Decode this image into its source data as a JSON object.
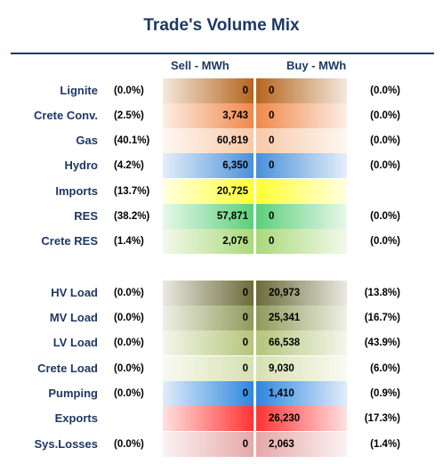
{
  "title": "Trade's Volume Mix",
  "headers": {
    "sell": "Sell - MWh",
    "buy": "Buy - MWh"
  },
  "rows": [
    {
      "label": "Lignite",
      "sell_pct": "(0.0%)",
      "sell": "0",
      "buy": "0",
      "buy_pct": "(0.0%)",
      "sell_color": "#b5651d",
      "buy_color": "#b5651d"
    },
    {
      "label": "Crete Conv.",
      "sell_pct": "(2.5%)",
      "sell": "3,743",
      "buy": "0",
      "buy_pct": "(0.0%)",
      "sell_color": "#f0884a",
      "buy_color": "#f0884a"
    },
    {
      "label": "Gas",
      "sell_pct": "(40.1%)",
      "sell": "60,819",
      "buy": "0",
      "buy_pct": "(0.0%)",
      "sell_color": "#f8c9a8",
      "buy_color": "#f8c9a8"
    },
    {
      "label": "Hydro",
      "sell_pct": "(4.2%)",
      "sell": "6,350",
      "buy": "0",
      "buy_pct": "(0.0%)",
      "sell_color": "#4a90d9",
      "buy_color": "#4a90d9"
    },
    {
      "label": "Imports",
      "sell_pct": "(13.7%)",
      "sell": "20,725",
      "buy": "",
      "buy_pct": "",
      "sell_color": "#ffff33",
      "buy_color": "#ffff33"
    },
    {
      "label": "RES",
      "sell_pct": "(38.2%)",
      "sell": "57,871",
      "buy": "0",
      "buy_pct": "(0.0%)",
      "sell_color": "#5ccf7a",
      "buy_color": "#5ccf7a"
    },
    {
      "label": "Crete RES",
      "sell_pct": "(1.4%)",
      "sell": "2,076",
      "buy": "0",
      "buy_pct": "(0.0%)",
      "sell_color": "#a9d97a",
      "buy_color": "#a9d97a"
    },
    {
      "label": "HV Load",
      "sell_pct": "(0.0%)",
      "sell": "0",
      "buy": "20,973",
      "buy_pct": "(13.8%)",
      "sell_color": "#6b6b3a",
      "buy_color": "#6b6b3a"
    },
    {
      "label": "MV Load",
      "sell_pct": "(0.0%)",
      "sell": "0",
      "buy": "25,341",
      "buy_pct": "(16.7%)",
      "sell_color": "#8f9a5a",
      "buy_color": "#8f9a5a"
    },
    {
      "label": "LV Load",
      "sell_pct": "(0.0%)",
      "sell": "0",
      "buy": "66,538",
      "buy_pct": "(43.9%)",
      "sell_color": "#b6c47a",
      "buy_color": "#b6c47a"
    },
    {
      "label": "Crete Load",
      "sell_pct": "(0.0%)",
      "sell": "0",
      "buy": "9,030",
      "buy_pct": "(6.0%)",
      "sell_color": "#d7e0b2",
      "buy_color": "#d7e0b2"
    },
    {
      "label": "Pumping",
      "sell_pct": "(0.0%)",
      "sell": "0",
      "buy": "1,410",
      "buy_pct": "(0.9%)",
      "sell_color": "#2e86de",
      "buy_color": "#2e86de"
    },
    {
      "label": "Exports",
      "sell_pct": "",
      "sell": "",
      "buy": "26,230",
      "buy_pct": "(17.3%)",
      "sell_color": "#ff3333",
      "buy_color": "#ff3333"
    },
    {
      "label": "Sys.Losses",
      "sell_pct": "(0.0%)",
      "sell": "0",
      "buy": "2,063",
      "buy_pct": "(1.4%)",
      "sell_color": "#e6a8a8",
      "buy_color": "#e6a8a8"
    }
  ]
}
